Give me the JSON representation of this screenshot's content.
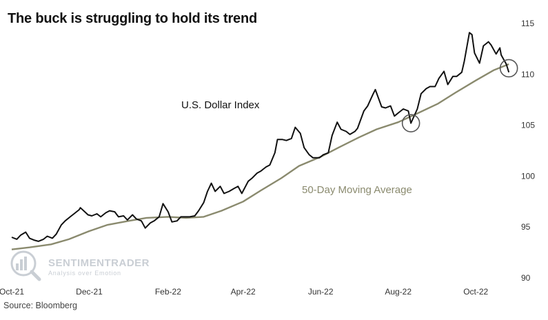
{
  "source": "Source: Bloomberg",
  "watermark": {
    "name": "SENTIMENTRADER",
    "tagline": "Analysis over Emotion"
  },
  "colors": {
    "dollar": "#111111",
    "moving_average": "#8a8a6e",
    "watermark": "#c9ced4"
  },
  "chart_data": {
    "type": "line",
    "title": "The buck is struggling to hold its trend",
    "xlabel": "",
    "ylabel": "",
    "ylim": [
      90,
      115
    ],
    "y_ticks": [
      90,
      95,
      100,
      105,
      110,
      115
    ],
    "y_axis_side": "right",
    "x_ticks": [
      {
        "date": "2021-10-01",
        "label": "Oct-21"
      },
      {
        "date": "2021-12-01",
        "label": "Dec-21"
      },
      {
        "date": "2022-02-01",
        "label": "Feb-22"
      },
      {
        "date": "2022-04-01",
        "label": "Apr-22"
      },
      {
        "date": "2022-06-01",
        "label": "Jun-22"
      },
      {
        "date": "2022-08-01",
        "label": "Aug-22"
      },
      {
        "date": "2022-10-01",
        "label": "Oct-22"
      }
    ],
    "xlim": [
      "2021-10-01",
      "2022-10-28"
    ],
    "grid": false,
    "series": [
      {
        "name": "U.S. Dollar Index",
        "points": [
          [
            "2021-10-01",
            94.0
          ],
          [
            "2021-10-05",
            93.8
          ],
          [
            "2021-10-08",
            94.2
          ],
          [
            "2021-10-12",
            94.5
          ],
          [
            "2021-10-15",
            93.9
          ],
          [
            "2021-10-19",
            93.7
          ],
          [
            "2021-10-22",
            93.6
          ],
          [
            "2021-10-26",
            93.8
          ],
          [
            "2021-10-29",
            94.1
          ],
          [
            "2021-11-02",
            93.9
          ],
          [
            "2021-11-05",
            94.3
          ],
          [
            "2021-11-09",
            95.2
          ],
          [
            "2021-11-12",
            95.6
          ],
          [
            "2021-11-16",
            96.0
          ],
          [
            "2021-11-19",
            96.3
          ],
          [
            "2021-11-23",
            96.7
          ],
          [
            "2021-11-24",
            96.9
          ],
          [
            "2021-11-30",
            96.2
          ],
          [
            "2021-12-03",
            96.1
          ],
          [
            "2021-12-07",
            96.3
          ],
          [
            "2021-12-10",
            96.0
          ],
          [
            "2021-12-14",
            96.4
          ],
          [
            "2021-12-17",
            96.6
          ],
          [
            "2021-12-21",
            96.5
          ],
          [
            "2021-12-24",
            96.0
          ],
          [
            "2021-12-28",
            96.1
          ],
          [
            "2021-12-31",
            95.7
          ],
          [
            "2022-01-04",
            96.2
          ],
          [
            "2022-01-07",
            95.8
          ],
          [
            "2022-01-11",
            95.6
          ],
          [
            "2022-01-14",
            94.9
          ],
          [
            "2022-01-18",
            95.4
          ],
          [
            "2022-01-21",
            95.6
          ],
          [
            "2022-01-25",
            96.0
          ],
          [
            "2022-01-28",
            97.3
          ],
          [
            "2022-02-01",
            96.5
          ],
          [
            "2022-02-04",
            95.5
          ],
          [
            "2022-02-08",
            95.6
          ],
          [
            "2022-02-11",
            96.0
          ],
          [
            "2022-02-15",
            96.0
          ],
          [
            "2022-02-18",
            96.0
          ],
          [
            "2022-02-22",
            96.1
          ],
          [
            "2022-02-25",
            96.6
          ],
          [
            "2022-03-01",
            97.4
          ],
          [
            "2022-03-04",
            98.5
          ],
          [
            "2022-03-07",
            99.3
          ],
          [
            "2022-03-10",
            98.5
          ],
          [
            "2022-03-14",
            99.0
          ],
          [
            "2022-03-17",
            98.3
          ],
          [
            "2022-03-21",
            98.5
          ],
          [
            "2022-03-25",
            98.8
          ],
          [
            "2022-03-28",
            99.0
          ],
          [
            "2022-03-31",
            98.3
          ],
          [
            "2022-04-05",
            99.5
          ],
          [
            "2022-04-08",
            99.8
          ],
          [
            "2022-04-12",
            100.3
          ],
          [
            "2022-04-15",
            100.5
          ],
          [
            "2022-04-19",
            100.9
          ],
          [
            "2022-04-22",
            101.1
          ],
          [
            "2022-04-26",
            102.3
          ],
          [
            "2022-04-28",
            103.6
          ],
          [
            "2022-05-02",
            103.6
          ],
          [
            "2022-05-05",
            103.5
          ],
          [
            "2022-05-09",
            103.7
          ],
          [
            "2022-05-12",
            104.8
          ],
          [
            "2022-05-16",
            104.2
          ],
          [
            "2022-05-19",
            102.8
          ],
          [
            "2022-05-23",
            102.1
          ],
          [
            "2022-05-26",
            101.8
          ],
          [
            "2022-05-31",
            101.8
          ],
          [
            "2022-06-03",
            102.1
          ],
          [
            "2022-06-07",
            102.3
          ],
          [
            "2022-06-10",
            104.0
          ],
          [
            "2022-06-14",
            105.3
          ],
          [
            "2022-06-17",
            104.6
          ],
          [
            "2022-06-21",
            104.4
          ],
          [
            "2022-06-24",
            104.1
          ],
          [
            "2022-06-28",
            104.4
          ],
          [
            "2022-06-30",
            104.7
          ],
          [
            "2022-07-05",
            106.4
          ],
          [
            "2022-07-08",
            106.9
          ],
          [
            "2022-07-12",
            108.0
          ],
          [
            "2022-07-14",
            108.5
          ],
          [
            "2022-07-19",
            106.8
          ],
          [
            "2022-07-22",
            106.7
          ],
          [
            "2022-07-26",
            106.9
          ],
          [
            "2022-07-29",
            105.9
          ],
          [
            "2022-08-02",
            106.3
          ],
          [
            "2022-08-05",
            106.6
          ],
          [
            "2022-08-09",
            106.4
          ],
          [
            "2022-08-11",
            105.2
          ],
          [
            "2022-08-16",
            106.6
          ],
          [
            "2022-08-19",
            108.1
          ],
          [
            "2022-08-23",
            108.6
          ],
          [
            "2022-08-26",
            108.8
          ],
          [
            "2022-08-30",
            108.8
          ],
          [
            "2022-09-02",
            109.6
          ],
          [
            "2022-09-06",
            110.3
          ],
          [
            "2022-09-09",
            109.0
          ],
          [
            "2022-09-13",
            109.8
          ],
          [
            "2022-09-16",
            109.8
          ],
          [
            "2022-09-20",
            110.2
          ],
          [
            "2022-09-22",
            111.3
          ],
          [
            "2022-09-26",
            114.1
          ],
          [
            "2022-09-28",
            113.9
          ],
          [
            "2022-09-30",
            112.1
          ],
          [
            "2022-10-04",
            111.1
          ],
          [
            "2022-10-07",
            112.8
          ],
          [
            "2022-10-11",
            113.2
          ],
          [
            "2022-10-13",
            112.9
          ],
          [
            "2022-10-17",
            112.0
          ],
          [
            "2022-10-20",
            112.6
          ],
          [
            "2022-10-21",
            111.9
          ],
          [
            "2022-10-25",
            111.0
          ],
          [
            "2022-10-27",
            110.2
          ]
        ]
      },
      {
        "name": "50-Day Moving Average",
        "points": [
          [
            "2021-10-01",
            92.8
          ],
          [
            "2021-10-15",
            93.0
          ],
          [
            "2021-11-01",
            93.3
          ],
          [
            "2021-11-15",
            93.8
          ],
          [
            "2021-12-01",
            94.6
          ],
          [
            "2021-12-15",
            95.2
          ],
          [
            "2022-01-01",
            95.6
          ],
          [
            "2022-01-15",
            95.9
          ],
          [
            "2022-02-01",
            96.0
          ],
          [
            "2022-02-15",
            95.9
          ],
          [
            "2022-03-01",
            96.0
          ],
          [
            "2022-03-15",
            96.6
          ],
          [
            "2022-04-01",
            97.5
          ],
          [
            "2022-04-15",
            98.6
          ],
          [
            "2022-05-01",
            99.8
          ],
          [
            "2022-05-15",
            101.0
          ],
          [
            "2022-06-01",
            101.9
          ],
          [
            "2022-06-15",
            102.8
          ],
          [
            "2022-07-01",
            103.8
          ],
          [
            "2022-07-15",
            104.6
          ],
          [
            "2022-08-01",
            105.3
          ],
          [
            "2022-08-15",
            106.1
          ],
          [
            "2022-09-01",
            107.1
          ],
          [
            "2022-09-15",
            108.2
          ],
          [
            "2022-10-01",
            109.4
          ],
          [
            "2022-10-15",
            110.4
          ],
          [
            "2022-10-27",
            111.0
          ]
        ]
      }
    ],
    "annotations": [
      {
        "type": "circle",
        "date": "2022-08-11",
        "value": 105.2
      },
      {
        "type": "circle",
        "date": "2022-10-27",
        "value": 110.6
      }
    ]
  }
}
